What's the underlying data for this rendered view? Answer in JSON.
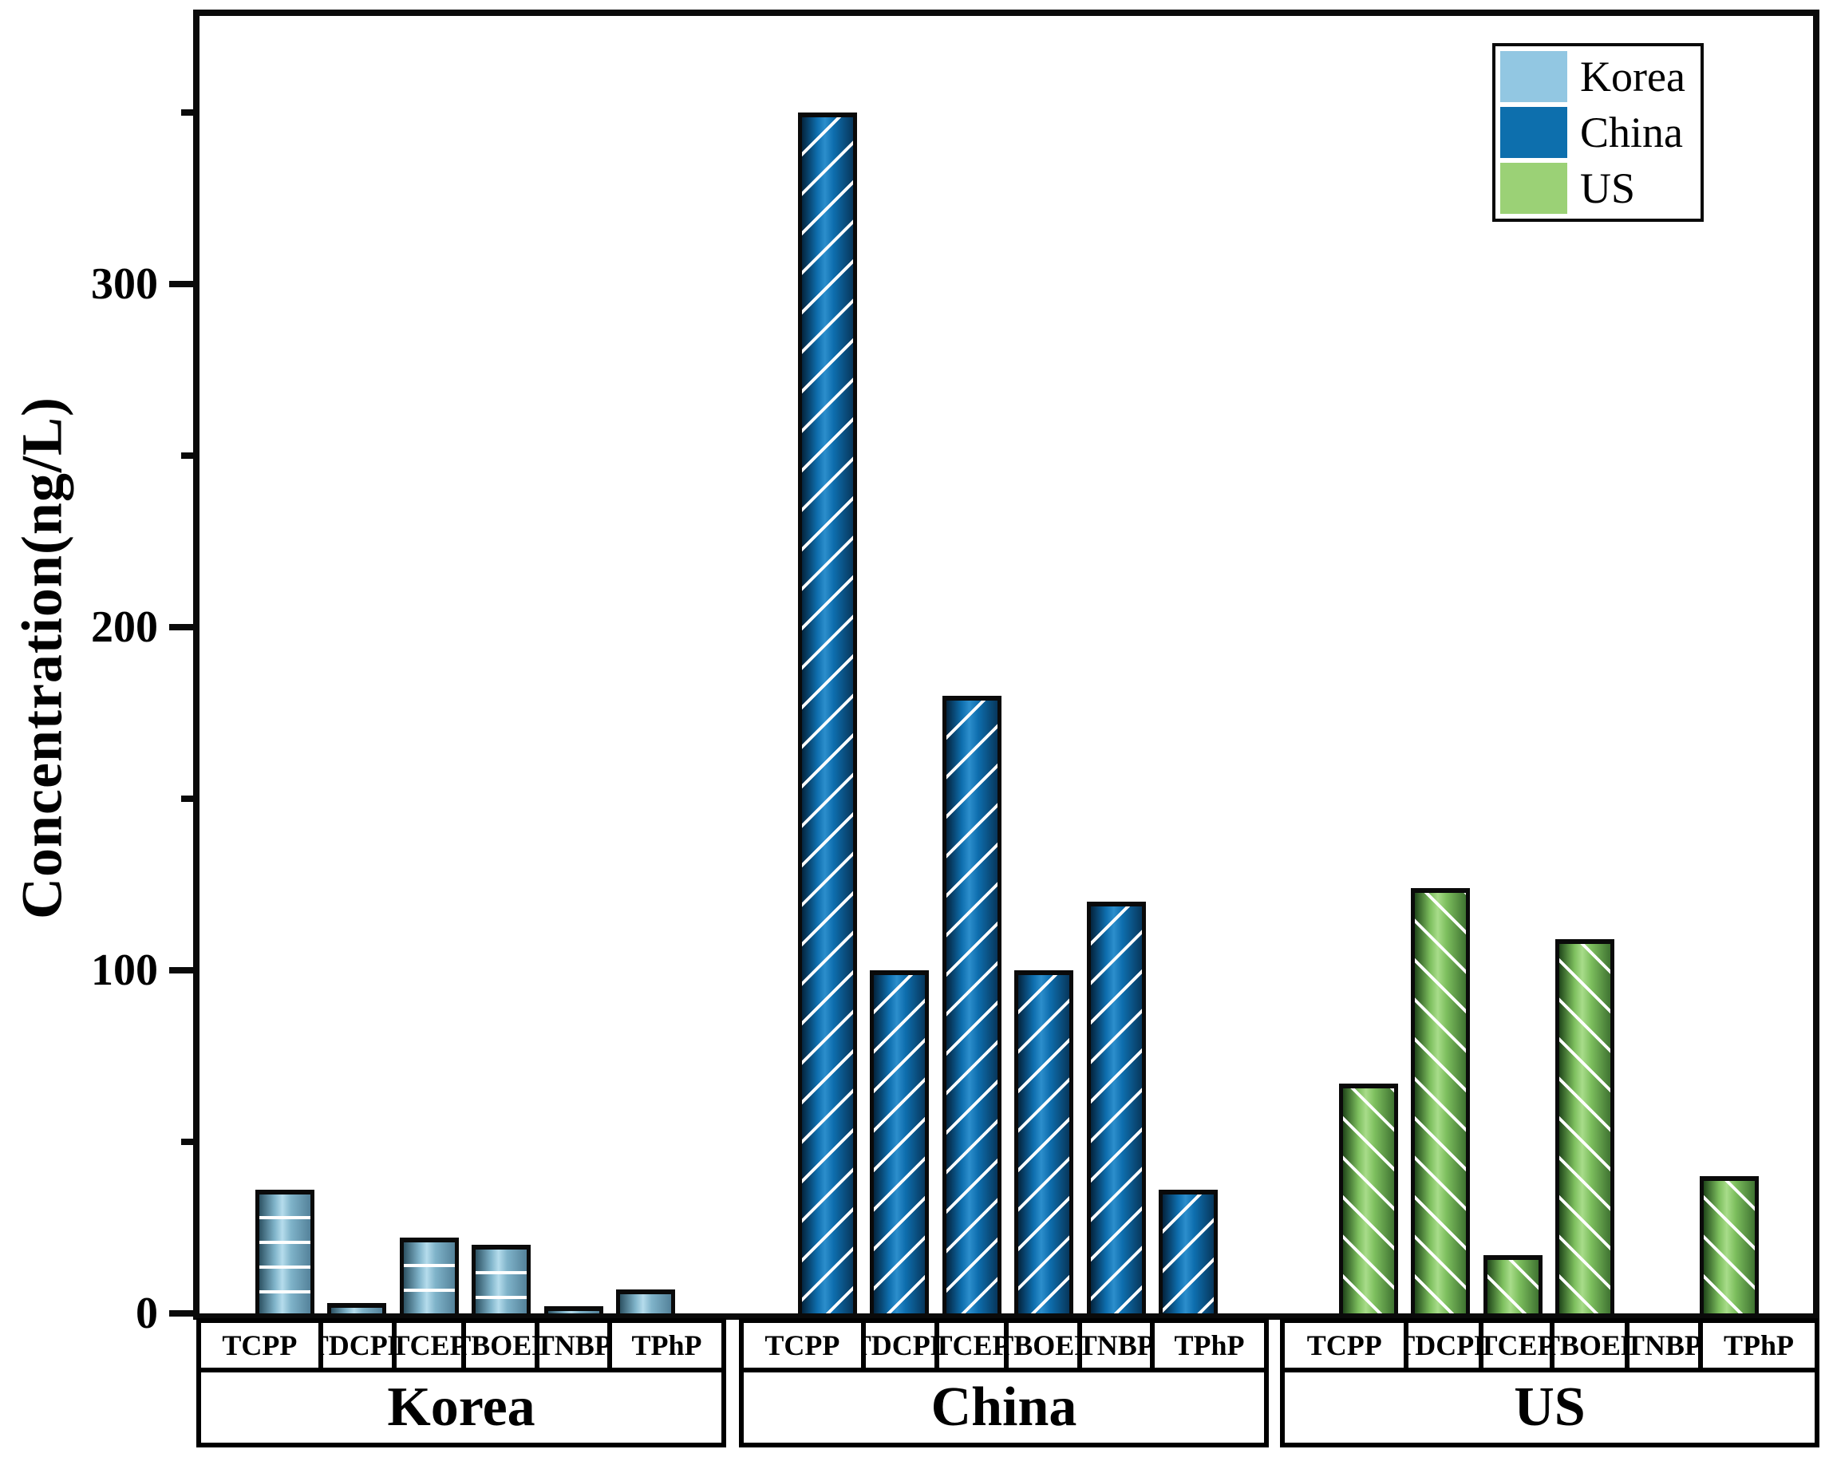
{
  "chart_data": {
    "type": "bar",
    "title": "",
    "y_axis_title": "Concentration(ng/L)",
    "ylabel": "Concentration(ng/L)",
    "xlabel": "",
    "ylim": [
      0,
      378
    ],
    "y_major_ticks": [
      "0",
      "100",
      "200",
      "300"
    ],
    "y_minor_tick_values": [
      50,
      150,
      250,
      350
    ],
    "grid": false,
    "legend_position": "top-right",
    "categories": [
      "TCPP",
      "TDCPP",
      "TCEP",
      "TBOEP",
      "TNBP",
      "TPhP"
    ],
    "series": [
      {
        "name": "Korea",
        "values": [
          36,
          3,
          22,
          20,
          2,
          7
        ],
        "hatch": "horizontal",
        "fill": {
          "edge": "#2d5263",
          "mid": "#7fb3c9",
          "light": "#b5dcec",
          "edge2": "#54829a"
        }
      },
      {
        "name": "China",
        "values": [
          350,
          100,
          180,
          100,
          120,
          36
        ],
        "hatch": "diagonal-up",
        "fill": {
          "edge": "#04243e",
          "mid": "#0e6eae",
          "light": "#2c8ecc",
          "edge2": "#07375c"
        }
      },
      {
        "name": "US",
        "values": [
          67,
          124,
          17,
          109,
          0,
          40
        ],
        "hatch": "diagonal-down",
        "fill": {
          "edge": "#20471a",
          "mid": "#7dbf5e",
          "light": "#a8dc8a",
          "edge2": "#3f7331"
        }
      }
    ]
  },
  "legend": {
    "items": [
      {
        "label": "Korea",
        "color": "#92c7e2"
      },
      {
        "label": "China",
        "color": "#0d6fad"
      },
      {
        "label": "US",
        "color": "#9bd176"
      }
    ]
  }
}
